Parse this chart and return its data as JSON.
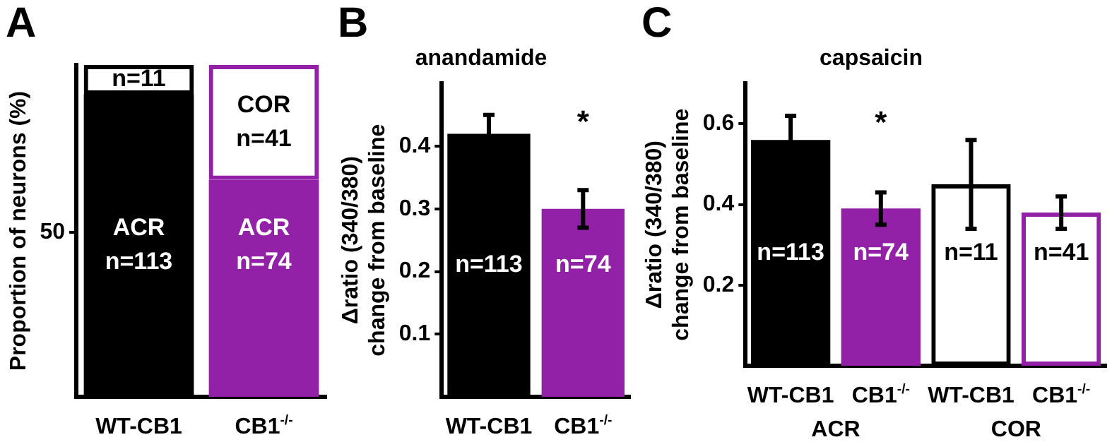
{
  "chart_data": [
    {
      "type": "bar",
      "stacked": true,
      "categories": [
        "WT-CB1",
        "CB1$^{-/-}$"
      ],
      "ylabel": "Proportion of neurons (%)",
      "ylim": [
        0,
        101
      ],
      "yticks": [
        50
      ],
      "annotations": [
        "A",
        "ACR\nn=113",
        "ACR\nn=74",
        "n=11",
        "COR\nn=41"
      ],
      "series": [
        {
          "values": [
            92,
            66
          ],
          "colors": [
            "#000000",
            "#9321a8"
          ]
        },
        {
          "values": [
            9,
            35
          ],
          "colors": [
            "#000000",
            "#9321a8"
          ]
        }
      ]
    },
    {
      "type": "bar",
      "title": "anandamide",
      "categories": [
        "WT-CB1",
        "CB1$^{-/-}$"
      ],
      "ylabel": "Δratio (340/380)\nchange from baseline",
      "values": [
        0.42,
        0.3
      ],
      "errors": [
        0.03,
        0.03
      ],
      "colors": [
        "#000000",
        "#9321a8"
      ],
      "ylim": [
        0,
        0.5
      ],
      "yticks": [
        0.1,
        0.2,
        0.3,
        0.4
      ],
      "annotations": [
        "B",
        "n=113",
        "n=74",
        "*"
      ]
    },
    {
      "type": "bar",
      "title": "capsaicin",
      "categories": [
        "WT-CB1",
        "CB1$^{-/-}$",
        "WT-CB1",
        "CB1$^{-/-}$"
      ],
      "ylabel": "Δratio (340/380)\nchange from baseline",
      "ylim": [
        0,
        0.7
      ],
      "yticks": [
        0.2,
        0.4,
        0.6
      ],
      "annotations": [
        "C",
        "n=113",
        "n=74",
        "n=11",
        "n=41",
        "ACR",
        "COR",
        "*"
      ],
      "series": [
        {
          "values": [
            0.56,
            0.39,
            null,
            null
          ],
          "errors": [
            0.06,
            0.04,
            null,
            null
          ],
          "colors": [
            "#000000",
            "#9321a8",
            null,
            null
          ]
        },
        {
          "values": [
            null,
            null,
            0.45,
            0.38
          ],
          "errors": [
            null,
            null,
            0.11,
            0.04
          ],
          "colors": [
            null,
            null,
            "#000000",
            "#9321a8"
          ]
        }
      ]
    }
  ]
}
